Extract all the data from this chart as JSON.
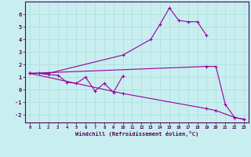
{
  "background_color": "#c8eef0",
  "grid_color": "#aadddd",
  "line_color": "#990099",
  "xlim": [
    -0.5,
    23.5
  ],
  "ylim": [
    -2.6,
    7.0
  ],
  "yticks": [
    -2,
    -1,
    0,
    1,
    2,
    3,
    4,
    5,
    6
  ],
  "xticks": [
    0,
    1,
    2,
    3,
    4,
    5,
    6,
    7,
    8,
    9,
    10,
    11,
    12,
    13,
    14,
    15,
    16,
    17,
    18,
    19,
    20,
    21,
    22,
    23
  ],
  "xlabel": "Windchill (Refroidissement éolien,°C)",
  "line1_x": [
    0,
    1,
    2,
    3,
    4,
    5,
    6,
    7,
    8,
    9,
    10
  ],
  "line1_y": [
    1.3,
    1.3,
    1.2,
    1.15,
    0.6,
    0.5,
    1.0,
    -0.1,
    0.5,
    -0.2,
    1.1
  ],
  "line2_x": [
    0,
    2,
    10,
    13,
    14,
    15,
    16,
    17,
    18,
    19
  ],
  "line2_y": [
    1.3,
    1.3,
    2.75,
    4.0,
    5.2,
    6.5,
    5.5,
    5.4,
    5.4,
    4.3
  ],
  "line3_x": [
    0,
    19,
    20,
    21,
    22,
    23
  ],
  "line3_y": [
    1.3,
    1.85,
    1.85,
    -1.15,
    -2.2,
    -2.35
  ],
  "line4_x": [
    0,
    10,
    19,
    20,
    22,
    23
  ],
  "line4_y": [
    1.3,
    -0.3,
    -1.5,
    -1.65,
    -2.2,
    -2.35
  ]
}
